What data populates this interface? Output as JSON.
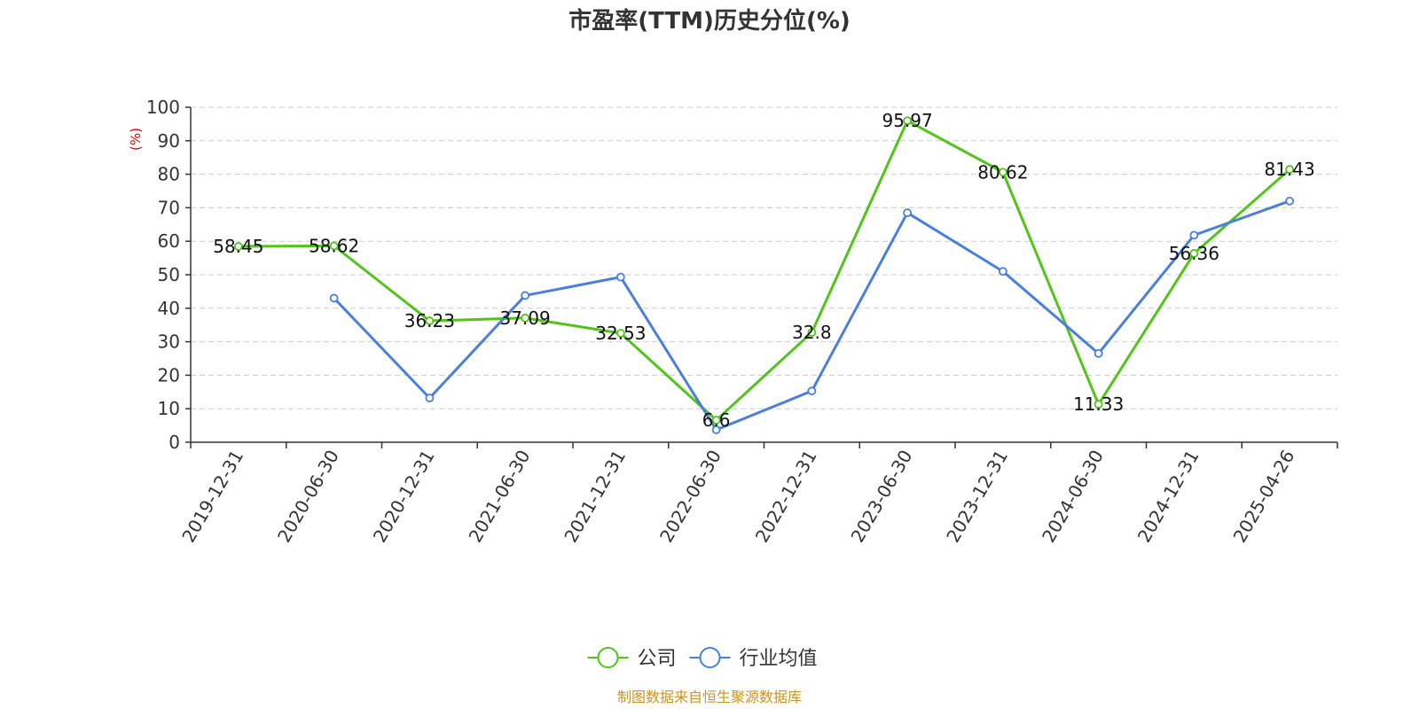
{
  "chart_data": {
    "type": "line",
    "title": "市盈率(TTM)历史分位(%)",
    "ylabel": "(%)",
    "ylim": [
      0,
      100
    ],
    "yticks": [
      0,
      10,
      20,
      30,
      40,
      50,
      60,
      70,
      80,
      90,
      100
    ],
    "grid": true,
    "legend_position": "bottom-center",
    "categories": [
      "2019-12-31",
      "2020-06-30",
      "2020-12-31",
      "2021-06-30",
      "2021-12-31",
      "2022-06-30",
      "2022-12-31",
      "2023-06-30",
      "2023-12-31",
      "2024-06-30",
      "2024-12-31",
      "2025-04-26"
    ],
    "series": [
      {
        "name": "公司",
        "color": "#52c41a",
        "show_labels": true,
        "values": [
          58.45,
          58.62,
          36.23,
          37.09,
          32.53,
          6.6,
          32.8,
          95.97,
          80.62,
          11.33,
          56.36,
          81.43
        ]
      },
      {
        "name": "行业均值",
        "color": "#4a7fdc",
        "show_labels": false,
        "values": [
          null,
          43.0,
          13.2,
          43.8,
          49.3,
          3.7,
          15.3,
          68.5,
          51.0,
          26.5,
          61.8,
          72.0
        ]
      }
    ]
  },
  "footer": {
    "source": "制图数据来自恒生聚源数据库"
  }
}
